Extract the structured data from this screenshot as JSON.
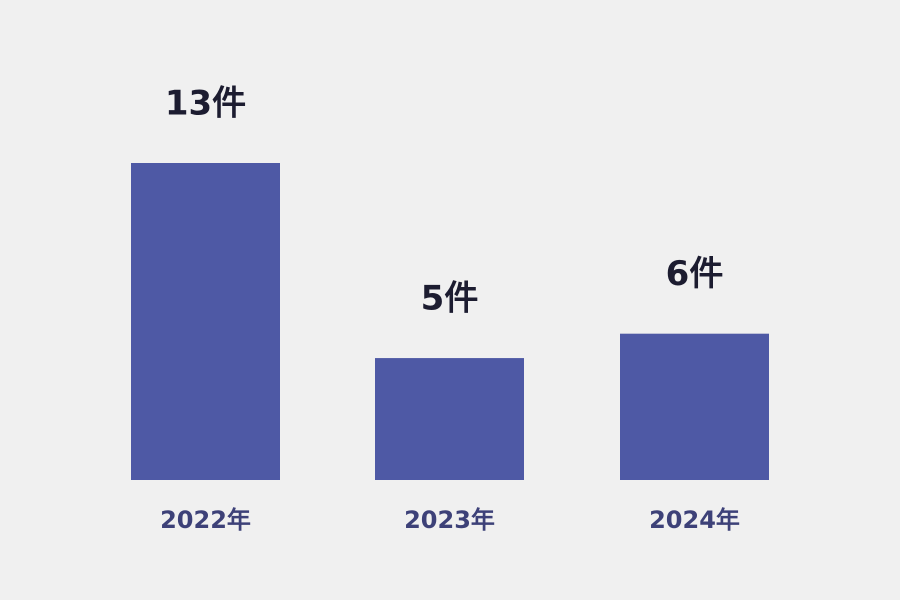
{
  "chart_data": {
    "type": "bar",
    "categories": [
      "2022年",
      "2023年",
      "2024年"
    ],
    "values": [
      13,
      5,
      6
    ],
    "value_labels": [
      "13件",
      "5件",
      "6件"
    ],
    "color": "#4e59a5"
  }
}
